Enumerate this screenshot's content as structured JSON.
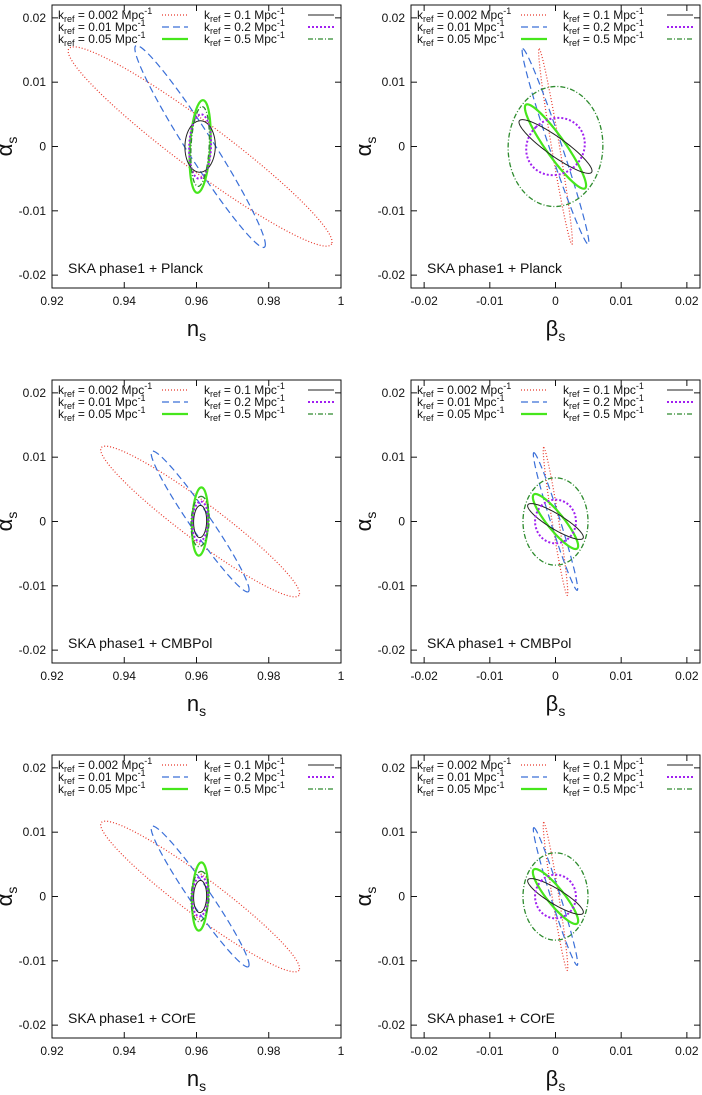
{
  "colors": {
    "k0002": "#e8372a",
    "k001": "#3a6fd8",
    "k005": "#46e61c",
    "k01": "#222222",
    "k02": "#a020f0",
    "k05": "#2e8b2e"
  },
  "legend": [
    {
      "id": "k0002",
      "prefix": "k",
      "sub": "ref",
      "mid": " = 0.002 Mpc",
      "sup": "-1",
      "dash": "1,2",
      "width": 1.2
    },
    {
      "id": "k001",
      "prefix": "k",
      "sub": "ref",
      "mid": " = 0.01  Mpc",
      "sup": "-1",
      "dash": "7,4",
      "width": 1.2
    },
    {
      "id": "k005",
      "prefix": "k",
      "sub": "ref",
      "mid": " = 0.05  Mpc",
      "sup": "-1",
      "dash": "",
      "width": 2.2
    },
    {
      "id": "k01",
      "prefix": "k",
      "sub": "ref",
      "mid": " = 0.1 Mpc",
      "sup": "-1",
      "dash": "",
      "width": 1.0
    },
    {
      "id": "k02",
      "prefix": "k",
      "sub": "ref",
      "mid": " = 0.2 Mpc",
      "sup": "-1",
      "dash": "2,2",
      "width": 2.0
    },
    {
      "id": "k05",
      "prefix": "k",
      "sub": "ref",
      "mid": " = 0.5 Mpc",
      "sup": "-1",
      "dash": "5,2,1,2",
      "width": 1.3
    }
  ],
  "chart_data": [
    {
      "type": "scatter",
      "title": "SKA phase1 + Planck",
      "xlabel": "n",
      "xlabel_sub": "s",
      "ylabel": "α",
      "ylabel_sub": "s",
      "xlim": [
        0.92,
        1.0
      ],
      "ylim": [
        -0.022,
        0.022
      ],
      "xticks": [
        0.92,
        0.94,
        0.96,
        0.98,
        1.0
      ],
      "xtick_labels": [
        "0.92",
        "0.94",
        "0.96",
        "0.98",
        "1"
      ],
      "yticks": [
        -0.02,
        -0.01,
        0,
        0.01,
        0.02
      ],
      "ytick_labels": [
        "-0.02",
        "-0.01",
        "0",
        "0.01",
        "0.02"
      ],
      "ellipses": [
        {
          "id": "k0002",
          "center": [
            0.961,
            0
          ],
          "v1": [
            0.0365,
            -0.015
          ],
          "v2": [
            0.0015,
            0.0039
          ]
        },
        {
          "id": "k001",
          "center": [
            0.961,
            0
          ],
          "v1": [
            0.018,
            -0.0155
          ],
          "v2": [
            0.0015,
            0.0025
          ]
        },
        {
          "id": "k005",
          "center": [
            0.961,
            0
          ],
          "v1": [
            0.0008,
            0.0072
          ],
          "v2": [
            0.0028,
            -0.0001
          ]
        },
        {
          "id": "k01",
          "center": [
            0.961,
            0
          ],
          "v1": [
            0.0002,
            0.004
          ],
          "v2": [
            0.0042,
            -0.0001
          ]
        },
        {
          "id": "k02",
          "center": [
            0.961,
            0
          ],
          "v1": [
            0.0004,
            0.005
          ],
          "v2": [
            0.003,
            -0.0002
          ]
        },
        {
          "id": "k05",
          "center": [
            0.961,
            0
          ],
          "v1": [
            0.0006,
            0.0062
          ],
          "v2": [
            0.0025,
            -0.0001
          ]
        }
      ]
    },
    {
      "type": "scatter",
      "title": "SKA phase1 + Planck",
      "xlabel": "β",
      "xlabel_sub": "s",
      "ylabel": "α",
      "ylabel_sub": "s",
      "xlim": [
        -0.022,
        0.022
      ],
      "ylim": [
        -0.022,
        0.022
      ],
      "xticks": [
        -0.02,
        -0.01,
        0,
        0.01,
        0.02
      ],
      "xtick_labels": [
        "-0.02",
        "-0.01",
        "0",
        "0.01",
        "0.02"
      ],
      "yticks": [
        -0.02,
        -0.01,
        0,
        0.01,
        0.02
      ],
      "ytick_labels": [
        "-0.02",
        "-0.01",
        "0",
        "0.01",
        "0.02"
      ],
      "ellipses": [
        {
          "id": "k0002",
          "center": [
            0,
            0
          ],
          "v1": [
            -0.0025,
            0.0152
          ],
          "v2": [
            0.0006,
            0.0001
          ]
        },
        {
          "id": "k001",
          "center": [
            0,
            0
          ],
          "v1": [
            -0.005,
            0.0152
          ],
          "v2": [
            0.0009,
            0.0003
          ]
        },
        {
          "id": "k005",
          "center": [
            0,
            0
          ],
          "v1": [
            -0.0045,
            0.0065
          ],
          "v2": [
            0.0012,
            0.0009
          ]
        },
        {
          "id": "k01",
          "center": [
            0,
            0
          ],
          "v1": [
            -0.0055,
            0.004
          ],
          "v2": [
            0.0008,
            0.0012
          ]
        },
        {
          "id": "k02",
          "center": [
            0,
            0
          ],
          "v1": [
            -0.003,
            0.003
          ],
          "v2": [
            0.0033,
            0.0033
          ]
        },
        {
          "id": "k05",
          "center": [
            0,
            0
          ],
          "v1": [
            0.0052,
            0.0066
          ],
          "v2": [
            -0.005,
            0.0066
          ]
        }
      ]
    },
    {
      "type": "scatter",
      "title": "SKA phase1 + CMBPol",
      "xlabel": "n",
      "xlabel_sub": "s",
      "ylabel": "α",
      "ylabel_sub": "s",
      "xlim": [
        0.92,
        1.0
      ],
      "ylim": [
        -0.022,
        0.022
      ],
      "xticks": [
        0.92,
        0.94,
        0.96,
        0.98,
        1.0
      ],
      "xtick_labels": [
        "0.92",
        "0.94",
        "0.96",
        "0.98",
        "1"
      ],
      "yticks": [
        -0.02,
        -0.01,
        0,
        0.01,
        0.02
      ],
      "ytick_labels": [
        "-0.02",
        "-0.01",
        "0",
        "0.01",
        "0.02"
      ],
      "ellipses": [
        {
          "id": "k0002",
          "center": [
            0.961,
            0
          ],
          "v1": [
            0.0275,
            -0.0113
          ],
          "v2": [
            0.0012,
            0.0031
          ]
        },
        {
          "id": "k001",
          "center": [
            0.961,
            0
          ],
          "v1": [
            0.0135,
            -0.0108
          ],
          "v2": [
            0.0012,
            0.0018
          ]
        },
        {
          "id": "k005",
          "center": [
            0.961,
            0
          ],
          "v1": [
            0.0004,
            0.0053
          ],
          "v2": [
            0.0022,
            -0.0001
          ]
        },
        {
          "id": "k01",
          "center": [
            0.961,
            0
          ],
          "v1": [
            0.0001,
            0.0025
          ],
          "v2": [
            0.0018,
            0
          ]
        },
        {
          "id": "k02",
          "center": [
            0.961,
            0
          ],
          "v1": [
            0.0002,
            0.0031
          ],
          "v2": [
            0.0022,
            0
          ]
        },
        {
          "id": "k05",
          "center": [
            0.961,
            0
          ],
          "v1": [
            0.0003,
            0.0039
          ],
          "v2": [
            0.0025,
            0
          ]
        }
      ]
    },
    {
      "type": "scatter",
      "title": "SKA phase1 + CMBPol",
      "xlabel": "β",
      "xlabel_sub": "s",
      "ylabel": "α",
      "ylabel_sub": "s",
      "xlim": [
        -0.022,
        0.022
      ],
      "ylim": [
        -0.022,
        0.022
      ],
      "xticks": [
        -0.02,
        -0.01,
        0,
        0.01,
        0.02
      ],
      "xtick_labels": [
        "-0.02",
        "-0.01",
        "0",
        "0.01",
        "0.02"
      ],
      "yticks": [
        -0.02,
        -0.01,
        0,
        0.01,
        0.02
      ],
      "ytick_labels": [
        "-0.02",
        "-0.01",
        "0",
        "0.01",
        "0.02"
      ],
      "ellipses": [
        {
          "id": "k0002",
          "center": [
            0,
            0
          ],
          "v1": [
            -0.0018,
            0.0115
          ],
          "v2": [
            0.0005,
            0.0001
          ]
        },
        {
          "id": "k001",
          "center": [
            0,
            0
          ],
          "v1": [
            -0.0033,
            0.0107
          ],
          "v2": [
            0.0007,
            0.0002
          ]
        },
        {
          "id": "k005",
          "center": [
            0,
            0
          ],
          "v1": [
            -0.0033,
            0.0042
          ],
          "v2": [
            0.001,
            0.0008
          ]
        },
        {
          "id": "k01",
          "center": [
            0,
            0
          ],
          "v1": [
            -0.0042,
            0.0026
          ],
          "v2": [
            0.0006,
            0.001
          ]
        },
        {
          "id": "k02",
          "center": [
            0,
            0
          ],
          "v1": [
            -0.0022,
            0.0024
          ],
          "v2": [
            0.0022,
            0.0024
          ]
        },
        {
          "id": "k05",
          "center": [
            0,
            0
          ],
          "v1": [
            0.0035,
            0.0048
          ],
          "v2": [
            -0.0035,
            0.0048
          ]
        }
      ]
    },
    {
      "type": "scatter",
      "title": "SKA phase1 + COrE",
      "xlabel": "n",
      "xlabel_sub": "s",
      "ylabel": "α",
      "ylabel_sub": "s",
      "xlim": [
        0.92,
        1.0
      ],
      "ylim": [
        -0.022,
        0.022
      ],
      "xticks": [
        0.92,
        0.94,
        0.96,
        0.98,
        1.0
      ],
      "xtick_labels": [
        "0.92",
        "0.94",
        "0.96",
        "0.98",
        "1"
      ],
      "yticks": [
        -0.02,
        -0.01,
        0,
        0.01,
        0.02
      ],
      "ytick_labels": [
        "-0.02",
        "-0.01",
        "0",
        "0.01",
        "0.02"
      ],
      "ellipses": [
        {
          "id": "k0002",
          "center": [
            0.961,
            0
          ],
          "v1": [
            0.0275,
            -0.0113
          ],
          "v2": [
            0.0012,
            0.0031
          ]
        },
        {
          "id": "k001",
          "center": [
            0.961,
            0
          ],
          "v1": [
            0.0135,
            -0.0108
          ],
          "v2": [
            0.0012,
            0.0018
          ]
        },
        {
          "id": "k005",
          "center": [
            0.961,
            0
          ],
          "v1": [
            0.0004,
            0.0053
          ],
          "v2": [
            0.0022,
            -0.0001
          ]
        },
        {
          "id": "k01",
          "center": [
            0.961,
            0
          ],
          "v1": [
            0.0001,
            0.0025
          ],
          "v2": [
            0.0018,
            0
          ]
        },
        {
          "id": "k02",
          "center": [
            0.961,
            0
          ],
          "v1": [
            0.0002,
            0.0031
          ],
          "v2": [
            0.0022,
            0
          ]
        },
        {
          "id": "k05",
          "center": [
            0.961,
            0
          ],
          "v1": [
            0.0003,
            0.0039
          ],
          "v2": [
            0.0025,
            0
          ]
        }
      ]
    },
    {
      "type": "scatter",
      "title": "SKA phase1 + COrE",
      "xlabel": "β",
      "xlabel_sub": "s",
      "ylabel": "α",
      "ylabel_sub": "s",
      "xlim": [
        -0.022,
        0.022
      ],
      "ylim": [
        -0.022,
        0.022
      ],
      "xticks": [
        -0.02,
        -0.01,
        0,
        0.01,
        0.02
      ],
      "xtick_labels": [
        "-0.02",
        "-0.01",
        "0",
        "0.01",
        "0.02"
      ],
      "yticks": [
        -0.02,
        -0.01,
        0,
        0.01,
        0.02
      ],
      "ytick_labels": [
        "-0.02",
        "-0.01",
        "0",
        "0.01",
        "0.02"
      ],
      "ellipses": [
        {
          "id": "k0002",
          "center": [
            0,
            0
          ],
          "v1": [
            -0.0018,
            0.0115
          ],
          "v2": [
            0.0005,
            0.0001
          ]
        },
        {
          "id": "k001",
          "center": [
            0,
            0
          ],
          "v1": [
            -0.0033,
            0.0107
          ],
          "v2": [
            0.0007,
            0.0002
          ]
        },
        {
          "id": "k005",
          "center": [
            0,
            0
          ],
          "v1": [
            -0.0033,
            0.0042
          ],
          "v2": [
            0.001,
            0.0008
          ]
        },
        {
          "id": "k01",
          "center": [
            0,
            0
          ],
          "v1": [
            -0.0042,
            0.0026
          ],
          "v2": [
            0.0006,
            0.001
          ]
        },
        {
          "id": "k02",
          "center": [
            0,
            0
          ],
          "v1": [
            -0.0022,
            0.0024
          ],
          "v2": [
            0.0022,
            0.0024
          ]
        },
        {
          "id": "k05",
          "center": [
            0,
            0
          ],
          "v1": [
            0.0035,
            0.0048
          ],
          "v2": [
            -0.0035,
            0.0048
          ]
        }
      ]
    }
  ]
}
